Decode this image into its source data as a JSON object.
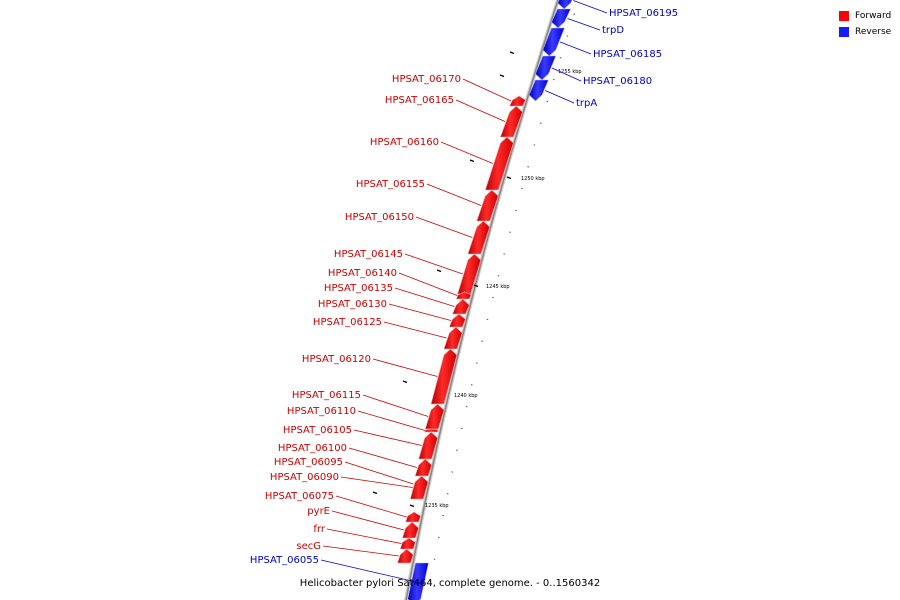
{
  "legend": {
    "forward_label": "Forward",
    "reverse_label": "Reverse",
    "forward_color": "#ff0000",
    "reverse_color": "#1a1aff"
  },
  "caption": "Helicobacter pylori Sat464, complete genome. - 0..1560342",
  "colors": {
    "forward_label": "#cc0000",
    "reverse_label": "#0000cc",
    "backbone": "#888888"
  },
  "axis": {
    "kbp_marks": [
      "1235 kbp",
      "1240 kbp",
      "1245 kbp",
      "1250 kbp",
      "1255 kbp"
    ]
  },
  "genes": [
    {
      "label": "HPSAT_06195",
      "strand": "reverse"
    },
    {
      "label": "trpD",
      "strand": "reverse"
    },
    {
      "label": "HPSAT_06185",
      "strand": "reverse"
    },
    {
      "label": "HPSAT_06180",
      "strand": "reverse"
    },
    {
      "label": "trpA",
      "strand": "reverse"
    },
    {
      "label": "HPSAT_06170",
      "strand": "forward"
    },
    {
      "label": "HPSAT_06165",
      "strand": "forward"
    },
    {
      "label": "HPSAT_06160",
      "strand": "forward"
    },
    {
      "label": "HPSAT_06155",
      "strand": "forward"
    },
    {
      "label": "HPSAT_06150",
      "strand": "forward"
    },
    {
      "label": "HPSAT_06145",
      "strand": "forward"
    },
    {
      "label": "HPSAT_06140",
      "strand": "forward"
    },
    {
      "label": "HPSAT_06135",
      "strand": "forward"
    },
    {
      "label": "HPSAT_06130",
      "strand": "forward"
    },
    {
      "label": "HPSAT_06125",
      "strand": "forward"
    },
    {
      "label": "HPSAT_06120",
      "strand": "forward"
    },
    {
      "label": "HPSAT_06115",
      "strand": "forward"
    },
    {
      "label": "HPSAT_06110",
      "strand": "forward"
    },
    {
      "label": "HPSAT_06105",
      "strand": "forward"
    },
    {
      "label": "HPSAT_06100",
      "strand": "forward"
    },
    {
      "label": "HPSAT_06095",
      "strand": "forward"
    },
    {
      "label": "HPSAT_06090",
      "strand": "forward"
    },
    {
      "label": "HPSAT_06075",
      "strand": "forward"
    },
    {
      "label": "pyrE",
      "strand": "forward"
    },
    {
      "label": "frr",
      "strand": "forward"
    },
    {
      "label": "secG",
      "strand": "forward"
    },
    {
      "label": "HPSAT_06055",
      "strand": "reverse"
    }
  ]
}
